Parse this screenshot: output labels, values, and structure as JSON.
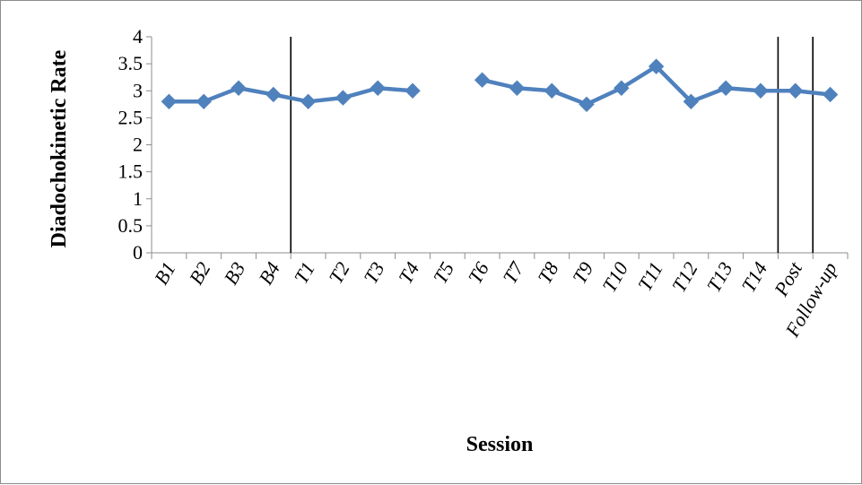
{
  "chart_data": {
    "type": "line",
    "title": "",
    "xlabel": "Session",
    "ylabel": "Diadochokinetic Rate",
    "ylim": [
      0,
      4
    ],
    "yticks": [
      "0",
      "0.5",
      "1",
      "1.5",
      "2",
      "2.5",
      "3",
      "3.5",
      "4"
    ],
    "categories": [
      "B1",
      "B2",
      "B3",
      "B4",
      "T1",
      "T2",
      "T3",
      "T4",
      "T5",
      "T6",
      "T7",
      "T8",
      "T9",
      "T10",
      "T11",
      "T12",
      "T13",
      "T14",
      "Post",
      "Follow-up"
    ],
    "series": [
      {
        "values": [
          2.8,
          2.8,
          3.05,
          2.93,
          2.8,
          2.87,
          3.05,
          3.0,
          null,
          3.2,
          3.05,
          3.0,
          2.75,
          3.05,
          3.45,
          2.8,
          3.05,
          3.0,
          3.0,
          2.93
        ],
        "color": "#4f81bd",
        "marker": "diamond"
      }
    ],
    "phase_dividers_after": [
      "B4",
      "T14",
      "Post"
    ],
    "grid": false,
    "legend": "none"
  }
}
